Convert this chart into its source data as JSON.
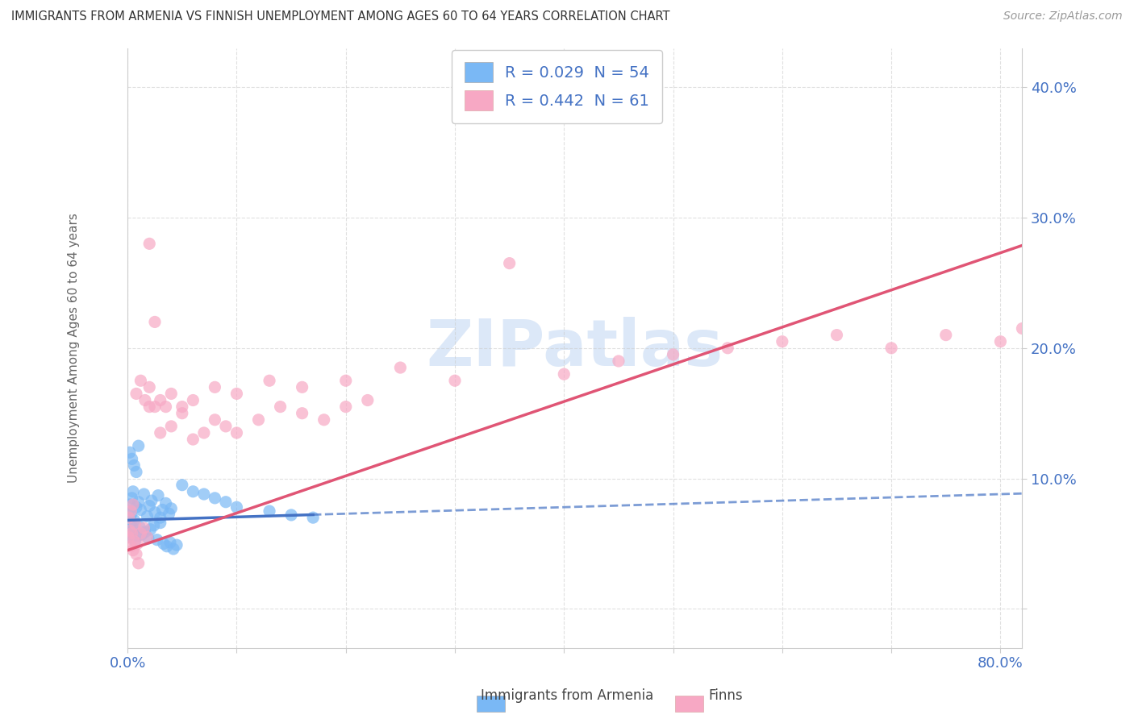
{
  "title": "IMMIGRANTS FROM ARMENIA VS FINNISH UNEMPLOYMENT AMONG AGES 60 TO 64 YEARS CORRELATION CHART",
  "source": "Source: ZipAtlas.com",
  "ylabel": "Unemployment Among Ages 60 to 64 years",
  "xlim": [
    0.0,
    0.82
  ],
  "ylim": [
    -0.03,
    0.43
  ],
  "xtick_positions": [
    0.0,
    0.1,
    0.2,
    0.3,
    0.4,
    0.5,
    0.6,
    0.7,
    0.8
  ],
  "ytick_positions": [
    0.0,
    0.1,
    0.2,
    0.3,
    0.4
  ],
  "color_armenia": "#7ab8f5",
  "color_finns": "#f7a8c4",
  "color_blue_line": "#4472c4",
  "color_pink_line": "#e05575",
  "color_axis_text": "#4472c4",
  "color_grid": "#cccccc",
  "watermark_text": "ZIPatlas",
  "watermark_color": "#dce8f8",
  "legend_entry1": "R = 0.029  N = 54",
  "legend_entry2": "R = 0.442  N = 61",
  "bottom_label1": "Immigrants from Armenia",
  "bottom_label2": "Finns",
  "blue_line_intercept": 0.068,
  "blue_line_slope": 0.025,
  "pink_line_intercept": 0.045,
  "pink_line_slope": 0.285,
  "armenia_x": [
    0.001,
    0.002,
    0.003,
    0.004,
    0.005,
    0.006,
    0.008,
    0.01,
    0.012,
    0.015,
    0.018,
    0.02,
    0.022,
    0.025,
    0.028,
    0.03,
    0.032,
    0.035,
    0.038,
    0.04,
    0.001,
    0.002,
    0.003,
    0.004,
    0.005,
    0.007,
    0.009,
    0.011,
    0.013,
    0.016,
    0.019,
    0.021,
    0.024,
    0.027,
    0.03,
    0.033,
    0.036,
    0.039,
    0.042,
    0.045,
    0.002,
    0.004,
    0.006,
    0.008,
    0.01,
    0.05,
    0.06,
    0.07,
    0.08,
    0.09,
    0.1,
    0.13,
    0.15,
    0.17
  ],
  "armenia_y": [
    0.075,
    0.08,
    0.072,
    0.085,
    0.09,
    0.068,
    0.078,
    0.082,
    0.076,
    0.088,
    0.071,
    0.079,
    0.083,
    0.074,
    0.087,
    0.07,
    0.076,
    0.081,
    0.073,
    0.077,
    0.06,
    0.055,
    0.065,
    0.058,
    0.062,
    0.052,
    0.056,
    0.063,
    0.057,
    0.059,
    0.054,
    0.061,
    0.064,
    0.053,
    0.066,
    0.05,
    0.048,
    0.051,
    0.046,
    0.049,
    0.12,
    0.115,
    0.11,
    0.105,
    0.125,
    0.095,
    0.09,
    0.088,
    0.085,
    0.082,
    0.078,
    0.075,
    0.072,
    0.07
  ],
  "finns_x": [
    0.001,
    0.002,
    0.003,
    0.004,
    0.005,
    0.006,
    0.007,
    0.008,
    0.009,
    0.01,
    0.012,
    0.015,
    0.018,
    0.02,
    0.025,
    0.03,
    0.035,
    0.04,
    0.05,
    0.06,
    0.07,
    0.08,
    0.09,
    0.1,
    0.12,
    0.14,
    0.16,
    0.18,
    0.2,
    0.22,
    0.001,
    0.003,
    0.005,
    0.008,
    0.012,
    0.016,
    0.02,
    0.025,
    0.03,
    0.04,
    0.05,
    0.06,
    0.08,
    0.1,
    0.13,
    0.16,
    0.2,
    0.25,
    0.3,
    0.35,
    0.4,
    0.45,
    0.5,
    0.55,
    0.6,
    0.65,
    0.7,
    0.75,
    0.8,
    0.82,
    0.02
  ],
  "finns_y": [
    0.055,
    0.06,
    0.048,
    0.058,
    0.045,
    0.052,
    0.065,
    0.042,
    0.05,
    0.035,
    0.058,
    0.062,
    0.055,
    0.155,
    0.22,
    0.135,
    0.155,
    0.14,
    0.15,
    0.13,
    0.135,
    0.145,
    0.14,
    0.135,
    0.145,
    0.155,
    0.15,
    0.145,
    0.155,
    0.16,
    0.07,
    0.075,
    0.08,
    0.165,
    0.175,
    0.16,
    0.17,
    0.155,
    0.16,
    0.165,
    0.155,
    0.16,
    0.17,
    0.165,
    0.175,
    0.17,
    0.175,
    0.185,
    0.175,
    0.265,
    0.18,
    0.19,
    0.195,
    0.2,
    0.205,
    0.21,
    0.2,
    0.21,
    0.205,
    0.215,
    0.28
  ]
}
